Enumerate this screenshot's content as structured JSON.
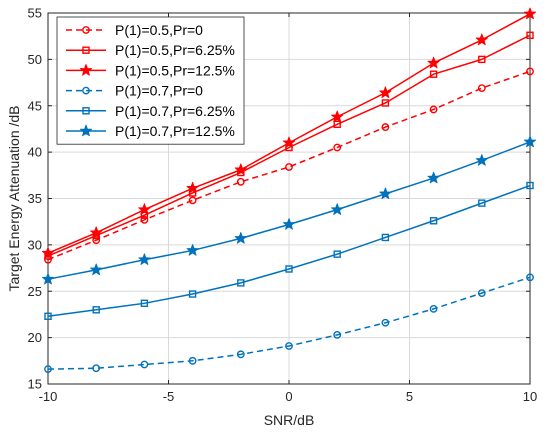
{
  "chart_data": {
    "type": "line",
    "xlabel": "SNR/dB",
    "ylabel": "Target Energy Attenuation /dB",
    "xlim": [
      -10,
      10
    ],
    "ylim": [
      15,
      55
    ],
    "xticks": [
      -10,
      -5,
      0,
      5,
      10
    ],
    "yticks": [
      15,
      20,
      25,
      30,
      35,
      40,
      45,
      50,
      55
    ],
    "grid": true,
    "legend_position": "top-left",
    "x": [
      -10,
      -8,
      -6,
      -4,
      -2,
      0,
      2,
      4,
      6,
      8,
      10
    ],
    "series": [
      {
        "name": "P(1)=0.5,Pr=0",
        "color": "#ff0000",
        "line_style": "dashed",
        "marker": "circle",
        "values": [
          28.4,
          30.5,
          32.7,
          34.8,
          36.8,
          38.4,
          40.5,
          42.7,
          44.6,
          46.9,
          48.7
        ]
      },
      {
        "name": "P(1)=0.5,Pr=6.25%",
        "color": "#ff0000",
        "line_style": "solid",
        "marker": "square",
        "values": [
          28.8,
          31.0,
          33.2,
          35.6,
          37.8,
          40.5,
          43.0,
          45.3,
          48.4,
          50.0,
          52.6
        ]
      },
      {
        "name": "P(1)=0.5,Pr=12.5%",
        "color": "#ff0000",
        "line_style": "solid",
        "marker": "star",
        "values": [
          29.1,
          31.3,
          33.8,
          36.1,
          38.1,
          41.0,
          43.8,
          46.4,
          49.6,
          52.1,
          54.9
        ]
      },
      {
        "name": "P(1)=0.7,Pr=0",
        "color": "#0072bd",
        "line_style": "dashed",
        "marker": "circle",
        "values": [
          16.6,
          16.7,
          17.1,
          17.5,
          18.2,
          19.1,
          20.3,
          21.6,
          23.1,
          24.8,
          26.5
        ]
      },
      {
        "name": "P(1)=0.7,Pr=6.25%",
        "color": "#0072bd",
        "line_style": "solid",
        "marker": "square",
        "values": [
          22.3,
          23.0,
          23.7,
          24.7,
          25.9,
          27.4,
          29.0,
          30.8,
          32.6,
          34.5,
          36.4
        ]
      },
      {
        "name": "P(1)=0.7,Pr=12.5%",
        "color": "#0072bd",
        "line_style": "solid",
        "marker": "star",
        "values": [
          26.3,
          27.3,
          28.4,
          29.4,
          30.7,
          32.2,
          33.8,
          35.5,
          37.2,
          39.1,
          41.1
        ]
      }
    ]
  }
}
